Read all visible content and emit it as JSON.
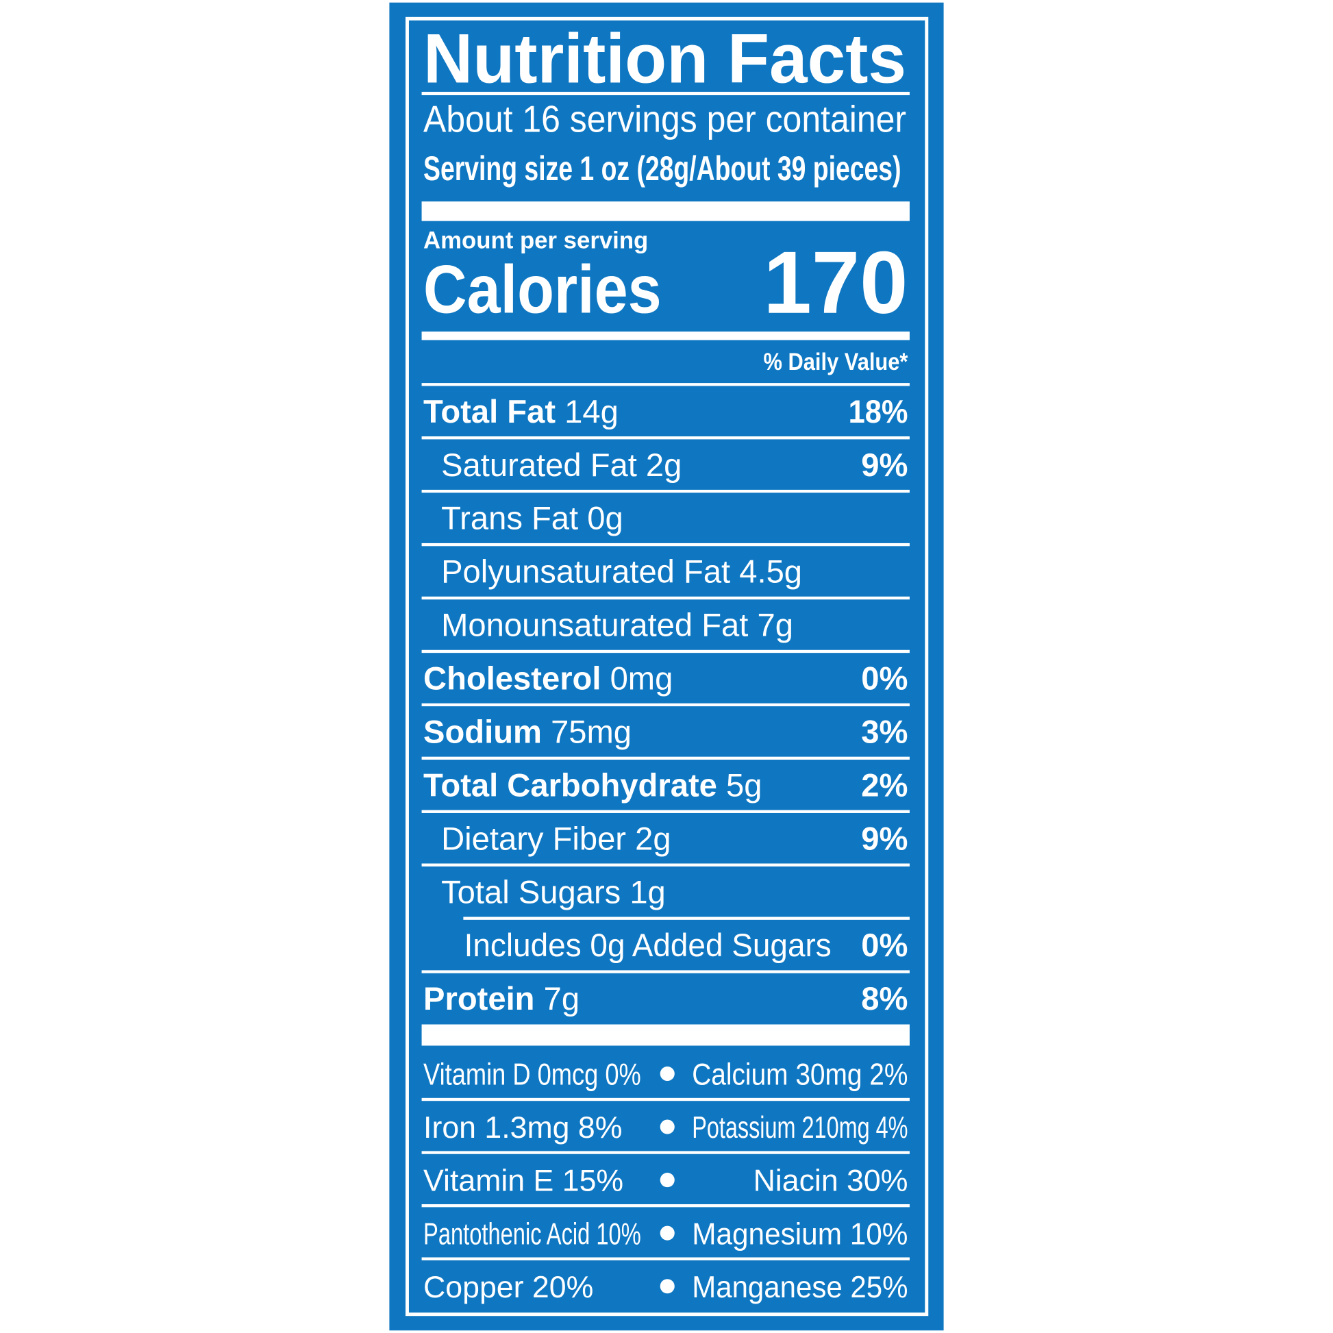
{
  "title": "Nutrition Facts",
  "servings": "About 16 servings per container",
  "serving_size": "Serving size 1 oz (28g/About 39 pieces)",
  "amount_per_serving": "Amount per serving",
  "calories": {
    "label": "Calories",
    "value": 170
  },
  "daily_value_header": "% Daily Value*",
  "nutrients": [
    {
      "name": "Total Fat",
      "amount": "14g",
      "daily_value": "18%",
      "sub": [
        {
          "name": "Saturated Fat 2g",
          "daily_value": "9%"
        },
        {
          "name": "Trans Fat 0g"
        },
        {
          "name": "Polyunsaturated Fat 4.5g"
        },
        {
          "name": "Monounsaturated Fat 7g"
        }
      ]
    },
    {
      "name": "Cholesterol",
      "amount": "0mg",
      "daily_value": "0%"
    },
    {
      "name": "Sodium",
      "amount": "75mg",
      "daily_value": "3%"
    },
    {
      "name": "Total Carbohydrate",
      "amount": "5g",
      "daily_value": "2%",
      "sub": [
        {
          "name": "Dietary Fiber 2g",
          "daily_value": "9%"
        },
        {
          "name": "Total Sugars 1g",
          "sub": [
            {
              "name": "Includes 0g Added Sugars",
              "daily_value": "0%"
            }
          ]
        }
      ]
    },
    {
      "name": "Protein",
      "amount": "7g",
      "daily_value": "8%"
    }
  ],
  "vitamins": [
    [
      "Vitamin D 0mcg 0%",
      "Calcium 30mg 2%"
    ],
    [
      "Iron 1.3mg 8%",
      "Potassium 210mg 4%"
    ],
    [
      "Vitamin E 15%",
      "Niacin 30%"
    ],
    [
      "Pantothenic Acid 10%",
      "Magnesium 10%"
    ],
    [
      "Copper 20%",
      "Manganese 25%"
    ]
  ]
}
